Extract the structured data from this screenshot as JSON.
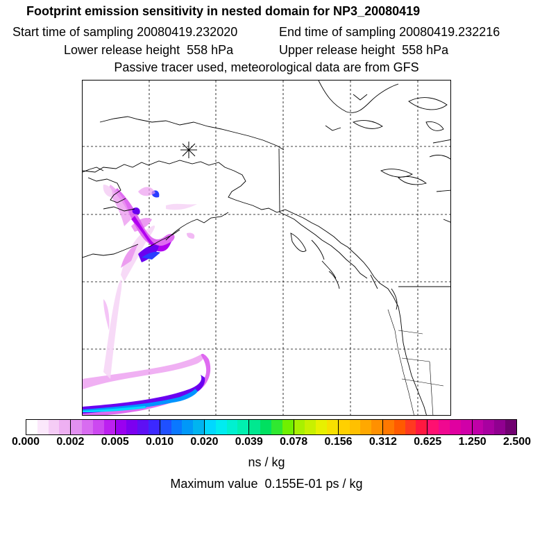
{
  "header": {
    "title": "Footprint emission sensitivity in nested domain for NP3_20080419",
    "start_time": "Start time of sampling 20080419.232020",
    "end_time": "End time of sampling 20080419.232216",
    "lower_height": "Lower release height  558 hPa",
    "upper_height": "Upper release height  558 hPa",
    "tracer_note": "Passive tracer used, meteorological data are from GFS"
  },
  "map": {
    "release_marker": "asterisk-icon",
    "plume_colors": [
      "#f6d6f6",
      "#ec9cf0",
      "#dc5cf0",
      "#b000f0",
      "#6a00f0",
      "#2a3cff",
      "#0094ff",
      "#00d8ff"
    ]
  },
  "legend": {
    "tick_labels": [
      "0.000",
      "0.002",
      "0.005",
      "0.010",
      "0.020",
      "0.039",
      "0.078",
      "0.156",
      "0.312",
      "0.625",
      "1.250",
      "2.500"
    ],
    "swatches": [
      "#ffffff",
      "#fbe8fb",
      "#f5ccf6",
      "#eeb0f2",
      "#e290f0",
      "#d86cf0",
      "#cc48f0",
      "#bc20f0",
      "#9a00f0",
      "#7c00f0",
      "#5e10f4",
      "#3c28ff",
      "#1f50ff",
      "#0a78ff",
      "#0098f8",
      "#00b4f0",
      "#00d8ff",
      "#00ecf0",
      "#00f0d0",
      "#00f0b0",
      "#00e890",
      "#00e060",
      "#30e830",
      "#70f000",
      "#a8f000",
      "#c8f000",
      "#e8f000",
      "#f8e000",
      "#ffd000",
      "#ffc000",
      "#ffa800",
      "#ff9000",
      "#ff7800",
      "#ff5a00",
      "#ff3a20",
      "#ff1840",
      "#ff1070",
      "#f00890",
      "#e000a0",
      "#d000a8",
      "#c000a8",
      "#a800a0",
      "#900090",
      "#700070"
    ],
    "unit": "ns / kg",
    "max_value": "Maximum value  0.155E-01 ps / kg"
  }
}
